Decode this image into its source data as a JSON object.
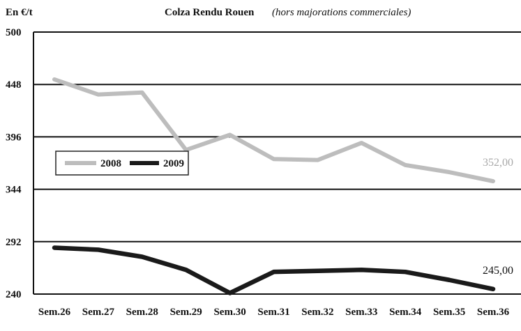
{
  "chart_data": {
    "type": "line",
    "title": "Colza Rendu Rouen",
    "subtitle": "(hors majorations commerciales)",
    "unit_label": "En €/t",
    "categories": [
      "Sem.26",
      "Sem.27",
      "Sem.28",
      "Sem.29",
      "Sem.30",
      "Sem.31",
      "Sem.32",
      "Sem.33",
      "Sem.34",
      "Sem.35",
      "Sem.36"
    ],
    "yticks": [
      "500",
      "448",
      "396",
      "344",
      "292",
      "240"
    ],
    "ylim": [
      240,
      500
    ],
    "grid": true,
    "legend_position": "left",
    "series": [
      {
        "name": "2008",
        "color": "#bdbdbd",
        "values": [
          453,
          438,
          440,
          383,
          398,
          374,
          373,
          390,
          368,
          361,
          352
        ],
        "end_label": "352,00"
      },
      {
        "name": "2009",
        "color": "#1a1a1a",
        "values": [
          286,
          284,
          277,
          264,
          241,
          262,
          263,
          264,
          262,
          254,
          245
        ],
        "end_label": "245,00"
      }
    ]
  }
}
